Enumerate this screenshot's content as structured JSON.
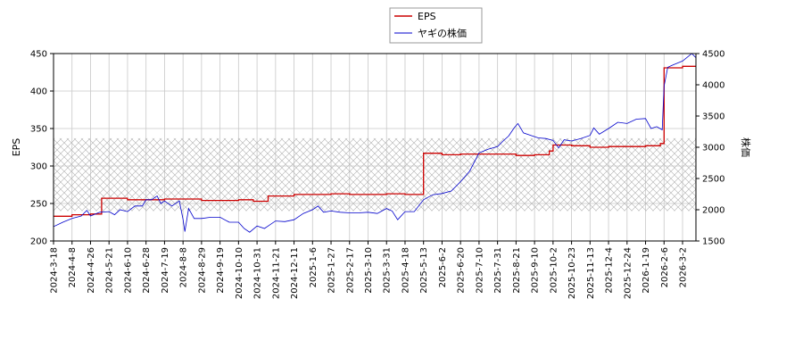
{
  "chart_data": {
    "type": "line",
    "x_tick_labels": [
      "2024-3-18",
      "2024-4-8",
      "2024-4-26",
      "2024-5-21",
      "2024-6-10",
      "2024-6-28",
      "2024-7-19",
      "2024-8-8",
      "2024-8-29",
      "2024-9-19",
      "2024-10-10",
      "2024-10-31",
      "2024-11-21",
      "2024-12-11",
      "2025-1-6",
      "2025-1-27",
      "2025-2-17",
      "2025-3-10",
      "2025-3-31",
      "2025-4-18",
      "2025-5-13",
      "2025-6-2",
      "2025-6-20",
      "2025-7-10",
      "2025-7-31",
      "2025-8-21",
      "2025-9-10",
      "2025-10-2",
      "2025-10-23",
      "2025-11-13",
      "2025-12-4",
      "2025-12-24",
      "2026-1-19",
      "2026-2-6",
      "2026-3-2"
    ],
    "y_left": {
      "label": "EPS",
      "range": [
        200,
        450
      ],
      "ticks": [
        200,
        250,
        300,
        350,
        400,
        450
      ]
    },
    "y_right": {
      "label": "株価",
      "range": [
        1500,
        4500
      ],
      "ticks": [
        1500,
        2000,
        2500,
        3000,
        3500,
        4000,
        4500
      ]
    },
    "hatch_band": {
      "axis": "left",
      "from": 240,
      "to": 337
    },
    "grid": true,
    "legend": {
      "placement": "top-center",
      "entries": [
        {
          "name": "EPS",
          "color": "#cc0000"
        },
        {
          "name": "ヤギの株価",
          "color": "#0000cc"
        }
      ]
    },
    "series": [
      {
        "name": "EPS",
        "axis": "left",
        "color": "#cc0000",
        "step": true,
        "points": [
          [
            0,
            233
          ],
          [
            1,
            235
          ],
          [
            2,
            236
          ],
          [
            2.6,
            257
          ],
          [
            3,
            257
          ],
          [
            4,
            255
          ],
          [
            5,
            255
          ],
          [
            6,
            256
          ],
          [
            7,
            256
          ],
          [
            8,
            254
          ],
          [
            9,
            254
          ],
          [
            10,
            255
          ],
          [
            10.8,
            253
          ],
          [
            11.6,
            260
          ],
          [
            12,
            260
          ],
          [
            13,
            262
          ],
          [
            14,
            262
          ],
          [
            15,
            263
          ],
          [
            16,
            262
          ],
          [
            17,
            262
          ],
          [
            18,
            263
          ],
          [
            19,
            262
          ],
          [
            19.9,
            262
          ],
          [
            20,
            317
          ],
          [
            21,
            315
          ],
          [
            22,
            316
          ],
          [
            23,
            316
          ],
          [
            24,
            316
          ],
          [
            25,
            314
          ],
          [
            26,
            315
          ],
          [
            26.8,
            320
          ],
          [
            27,
            328
          ],
          [
            28,
            327
          ],
          [
            29,
            325
          ],
          [
            30,
            326
          ],
          [
            31,
            326
          ],
          [
            32,
            327
          ],
          [
            32.8,
            330
          ],
          [
            33,
            431
          ],
          [
            34,
            433
          ],
          [
            35,
            431
          ]
        ]
      },
      {
        "name": "ヤギの株価",
        "axis": "right",
        "color": "#0000cc",
        "points": [
          [
            0,
            1730
          ],
          [
            0.5,
            1800
          ],
          [
            1,
            1860
          ],
          [
            1.5,
            1900
          ],
          [
            1.8,
            1990
          ],
          [
            2,
            1900
          ],
          [
            2.5,
            1960
          ],
          [
            3,
            1970
          ],
          [
            3.3,
            1920
          ],
          [
            3.6,
            2000
          ],
          [
            4,
            1970
          ],
          [
            4.4,
            2060
          ],
          [
            4.8,
            2060
          ],
          [
            5,
            2160
          ],
          [
            5.3,
            2160
          ],
          [
            5.6,
            2220
          ],
          [
            5.8,
            2100
          ],
          [
            6,
            2140
          ],
          [
            6.4,
            2060
          ],
          [
            6.8,
            2140
          ],
          [
            7,
            1850
          ],
          [
            7.1,
            1650
          ],
          [
            7.3,
            2020
          ],
          [
            7.6,
            1860
          ],
          [
            8,
            1860
          ],
          [
            8.5,
            1880
          ],
          [
            9,
            1880
          ],
          [
            9.5,
            1800
          ],
          [
            10,
            1800
          ],
          [
            10.3,
            1700
          ],
          [
            10.6,
            1640
          ],
          [
            11,
            1740
          ],
          [
            11.4,
            1700
          ],
          [
            12,
            1820
          ],
          [
            12.5,
            1810
          ],
          [
            13,
            1840
          ],
          [
            13.5,
            1940
          ],
          [
            14,
            2000
          ],
          [
            14.3,
            2060
          ],
          [
            14.6,
            1960
          ],
          [
            15,
            1980
          ],
          [
            15.5,
            1960
          ],
          [
            16,
            1950
          ],
          [
            16.5,
            1950
          ],
          [
            17,
            1960
          ],
          [
            17.5,
            1940
          ],
          [
            18,
            2020
          ],
          [
            18.3,
            1980
          ],
          [
            18.6,
            1840
          ],
          [
            19,
            1970
          ],
          [
            19.5,
            1970
          ],
          [
            20,
            2160
          ],
          [
            20.5,
            2240
          ],
          [
            21,
            2260
          ],
          [
            21.5,
            2300
          ],
          [
            22,
            2450
          ],
          [
            22.5,
            2620
          ],
          [
            23,
            2910
          ],
          [
            23.5,
            2970
          ],
          [
            24,
            3010
          ],
          [
            24.3,
            3100
          ],
          [
            24.6,
            3180
          ],
          [
            24.9,
            3310
          ],
          [
            25.1,
            3380
          ],
          [
            25.4,
            3230
          ],
          [
            25.8,
            3190
          ],
          [
            26.2,
            3150
          ],
          [
            26.6,
            3140
          ],
          [
            27,
            3110
          ],
          [
            27.3,
            2990
          ],
          [
            27.6,
            3120
          ],
          [
            28,
            3100
          ],
          [
            28.5,
            3140
          ],
          [
            29,
            3190
          ],
          [
            29.2,
            3310
          ],
          [
            29.5,
            3210
          ],
          [
            30,
            3300
          ],
          [
            30.5,
            3400
          ],
          [
            31,
            3380
          ],
          [
            31.5,
            3450
          ],
          [
            32,
            3460
          ],
          [
            32.3,
            3300
          ],
          [
            32.6,
            3330
          ],
          [
            32.9,
            3280
          ],
          [
            33,
            3980
          ],
          [
            33.2,
            4280
          ],
          [
            33.5,
            4320
          ],
          [
            34,
            4380
          ],
          [
            34.5,
            4500
          ],
          [
            35,
            4350
          ]
        ]
      }
    ]
  }
}
